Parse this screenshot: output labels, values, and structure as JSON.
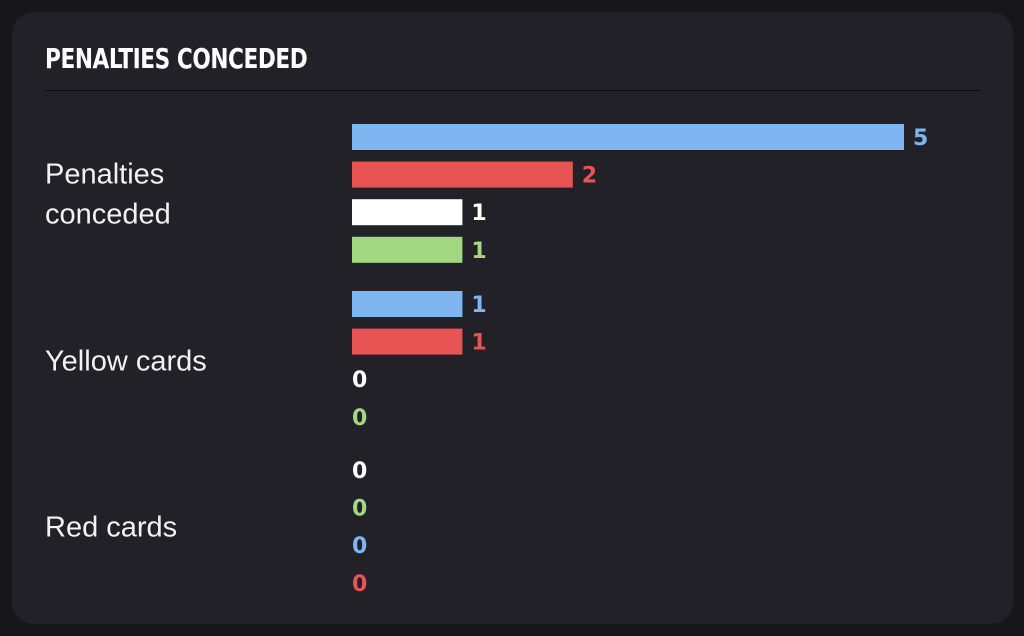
{
  "title": "PENALTIES CONCEDED",
  "colors": {
    "card_bg": "#222128",
    "page_bg": "#17161b",
    "series": [
      "#7fb6f2",
      "#e85454",
      "#ffffff",
      "#a3d882"
    ]
  },
  "chart_data": {
    "type": "bar",
    "orientation": "horizontal",
    "title": "PENALTIES CONCEDED",
    "groups": [
      {
        "label_lines": [
          "Penalties",
          "conceded"
        ],
        "bars": [
          {
            "value": 5,
            "color": "#7fb6f2"
          },
          {
            "value": 2,
            "color": "#e85454"
          },
          {
            "value": 1,
            "color": "#ffffff"
          },
          {
            "value": 1,
            "color": "#a3d882"
          }
        ]
      },
      {
        "label_lines": [
          "Yellow cards"
        ],
        "bars": [
          {
            "value": 1,
            "color": "#7fb6f2"
          },
          {
            "value": 1,
            "color": "#e85454"
          },
          {
            "value": 0,
            "color": "#ffffff"
          },
          {
            "value": 0,
            "color": "#a3d882"
          }
        ]
      },
      {
        "label_lines": [
          "Red cards"
        ],
        "bars": [
          {
            "value": 0,
            "color": "#ffffff"
          },
          {
            "value": 0,
            "color": "#a3d882"
          },
          {
            "value": 0,
            "color": "#7fb6f2"
          },
          {
            "value": 0,
            "color": "#e85454"
          }
        ]
      }
    ],
    "xlim": [
      0,
      5
    ],
    "grid": false,
    "legend": "none"
  }
}
